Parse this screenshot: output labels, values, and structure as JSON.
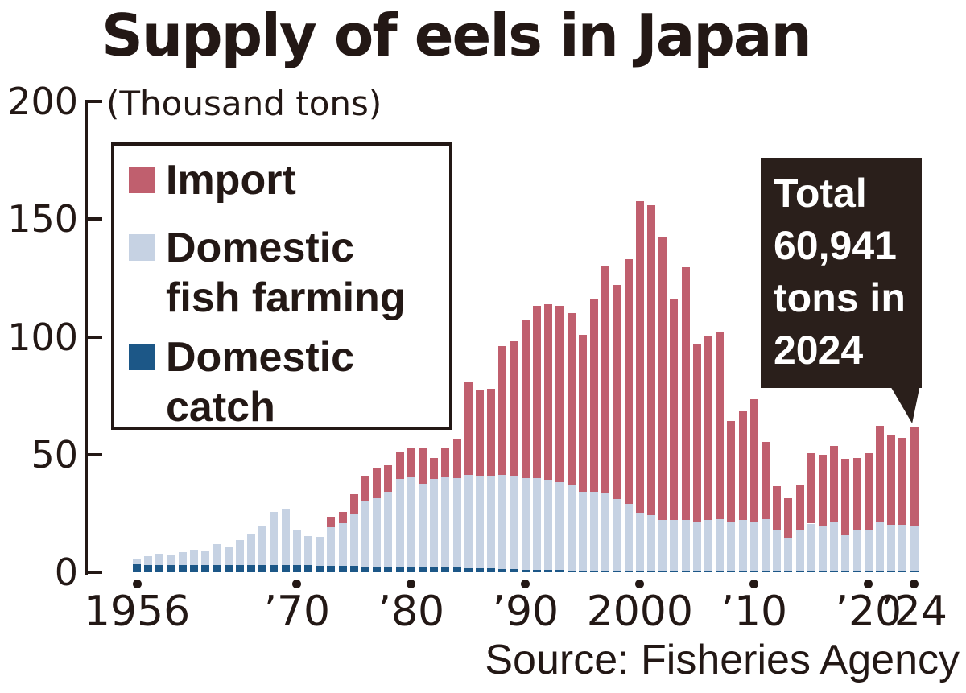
{
  "title": "Supply of eels in Japan",
  "y_axis": {
    "unit_label": "(Thousand tons)",
    "ticks": [
      {
        "label": "200",
        "value": 200
      },
      {
        "label": "150",
        "value": 150
      },
      {
        "label": "100",
        "value": 100
      },
      {
        "label": "50",
        "value": 50
      },
      {
        "label": "0",
        "value": 0
      }
    ]
  },
  "x_axis": {
    "ticks": [
      {
        "label": "1956",
        "year": 1956
      },
      {
        "label": "’70",
        "year": 1970
      },
      {
        "label": "’80",
        "year": 1980
      },
      {
        "label": "’90",
        "year": 1990
      },
      {
        "label": "2000",
        "year": 2000
      },
      {
        "label": "’10",
        "year": 2010
      },
      {
        "label": "’20",
        "year": 2020
      },
      {
        "label": "’24",
        "year": 2024
      }
    ]
  },
  "legend": {
    "items": [
      {
        "key": "import",
        "lines": [
          "Import"
        ],
        "color": "#c05f6e"
      },
      {
        "key": "farming",
        "lines": [
          "Domestic",
          "fish farming"
        ],
        "color": "#c6d2e3"
      },
      {
        "key": "catch",
        "lines": [
          "Domestic",
          "catch"
        ],
        "color": "#1c5787"
      }
    ]
  },
  "callout": {
    "lines": [
      "Total",
      "60,941",
      "tons in",
      "2024"
    ],
    "bg": "#2a1f1b",
    "text_color": "#ffffff"
  },
  "source": "Source: Fisheries Agency",
  "colors": {
    "import": "#c05f6e",
    "farming": "#c6d2e3",
    "catch": "#1c5787",
    "ink": "#231815"
  },
  "chart_data": {
    "type": "bar",
    "stacked": true,
    "title": "Supply of eels in Japan",
    "ylabel": "(Thousand tons)",
    "ylim": [
      0,
      200
    ],
    "grid": false,
    "legend_position": "upper-left",
    "annotation": "Total 60,941 tons in 2024",
    "categories": [
      1956,
      1957,
      1958,
      1959,
      1960,
      1961,
      1962,
      1963,
      1964,
      1965,
      1966,
      1967,
      1968,
      1969,
      1970,
      1971,
      1972,
      1973,
      1974,
      1975,
      1976,
      1977,
      1978,
      1979,
      1980,
      1981,
      1982,
      1983,
      1984,
      1985,
      1986,
      1987,
      1988,
      1989,
      1990,
      1991,
      1992,
      1993,
      1994,
      1995,
      1996,
      1997,
      1998,
      1999,
      2000,
      2001,
      2002,
      2003,
      2004,
      2005,
      2006,
      2007,
      2008,
      2009,
      2010,
      2011,
      2012,
      2013,
      2014,
      2015,
      2016,
      2017,
      2018,
      2019,
      2020,
      2021,
      2022,
      2023,
      2024
    ],
    "series": [
      {
        "name": "Domestic catch",
        "color": "#1c5787",
        "values": [
          3.3,
          3.2,
          3.2,
          3.1,
          3.1,
          3.1,
          3.1,
          3.0,
          3.0,
          3.2,
          3.1,
          3.1,
          3.1,
          3.1,
          3.0,
          3.0,
          2.9,
          2.8,
          2.7,
          2.6,
          2.5,
          2.4,
          2.3,
          2.3,
          2.2,
          2.1,
          2.1,
          2.0,
          1.9,
          1.7,
          1.7,
          1.6,
          1.5,
          1.3,
          1.1,
          1.0,
          0.9,
          0.9,
          0.8,
          0.8,
          0.7,
          0.7,
          0.7,
          0.7,
          0.8,
          0.7,
          0.6,
          0.6,
          0.6,
          0.6,
          0.5,
          0.5,
          0.4,
          0.3,
          0.2,
          0.2,
          0.2,
          0.1,
          0.1,
          0.1,
          0.1,
          0.1,
          0.1,
          0.1,
          0.1,
          0.1,
          0.1,
          0.1,
          0.1
        ]
      },
      {
        "name": "Domestic fish farming",
        "color": "#c6d2e3",
        "values": [
          2.0,
          3.5,
          4.5,
          4.0,
          5.5,
          6.5,
          6.0,
          9.0,
          7.5,
          10.5,
          13.0,
          16.5,
          22.5,
          23.5,
          15.0,
          12.5,
          12.0,
          16.5,
          18.0,
          22.0,
          27.5,
          29.0,
          32.0,
          37.5,
          38.0,
          35.5,
          37.5,
          38.5,
          38.0,
          39.5,
          39.0,
          39.5,
          40.0,
          39.5,
          39.0,
          39.0,
          38.5,
          37.5,
          36.5,
          33.5,
          33.5,
          33.0,
          30.5,
          28.5,
          24.5,
          23.5,
          21.5,
          21.5,
          21.5,
          21.0,
          21.5,
          22.0,
          21.0,
          21.5,
          20.5,
          22.0,
          17.5,
          14.0,
          17.5,
          20.0,
          19.0,
          20.5,
          15.0,
          17.0,
          17.0,
          20.5,
          19.5,
          19.5,
          19.0
        ]
      },
      {
        "name": "Import",
        "color": "#c05f6e",
        "values": [
          0,
          0,
          0,
          0,
          0,
          0,
          0,
          0,
          0,
          0,
          0,
          0,
          0,
          0,
          0,
          0,
          0,
          4.2,
          4.8,
          8.4,
          11.0,
          12.6,
          11.2,
          11.2,
          12.3,
          14.9,
          8.9,
          12.0,
          16.6,
          39.8,
          36.8,
          36.9,
          54.5,
          57.2,
          67.4,
          73.0,
          74.6,
          74.6,
          72.7,
          66.7,
          81.8,
          96.3,
          90.8,
          103.8,
          132.2,
          131.8,
          119.9,
          93.9,
          107.4,
          75.4,
          78.0,
          79.5,
          42.6,
          46.2,
          52.3,
          32.8,
          18.3,
          16.9,
          18.9,
          29.9,
          30.4,
          32.4,
          32.4,
          30.9,
          32.9,
          40.9,
          37.9,
          36.9,
          41.8
        ]
      }
    ]
  }
}
